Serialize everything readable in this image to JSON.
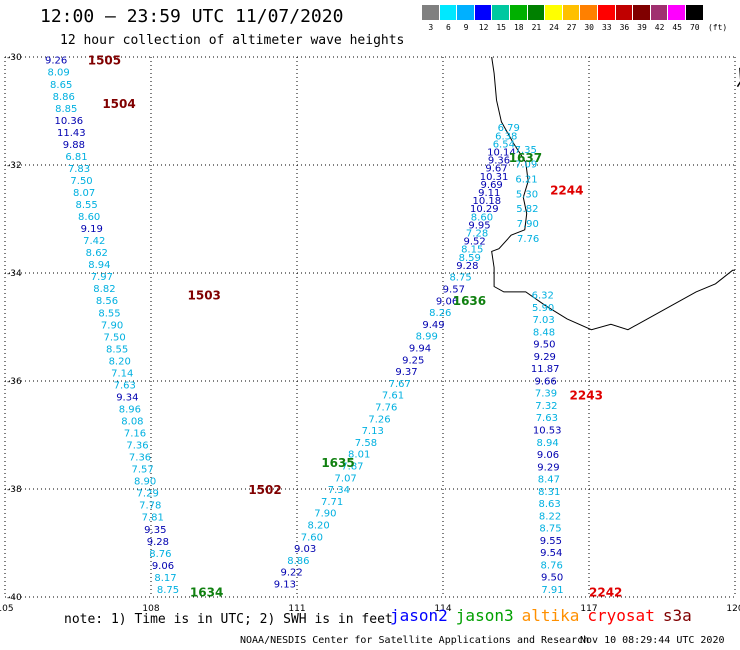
{
  "header": {
    "title": "12:00 — 23:59 UTC 11/07/2020",
    "subtitle": "12 hour collection of altimeter wave heights"
  },
  "legend": {
    "unit": "(ft)",
    "items": [
      {
        "label": "3",
        "color": "#808080"
      },
      {
        "label": "6",
        "color": "#00e8ff"
      },
      {
        "label": "9",
        "color": "#00b0ff"
      },
      {
        "label": "12",
        "color": "#0000ff"
      },
      {
        "label": "15",
        "color": "#00c8a0"
      },
      {
        "label": "18",
        "color": "#00b000"
      },
      {
        "label": "21",
        "color": "#008000"
      },
      {
        "label": "24",
        "color": "#ffff00"
      },
      {
        "label": "27",
        "color": "#ffc000"
      },
      {
        "label": "30",
        "color": "#ff8000"
      },
      {
        "label": "33",
        "color": "#ff0000"
      },
      {
        "label": "36",
        "color": "#c00000"
      },
      {
        "label": "39",
        "color": "#800000"
      },
      {
        "label": "42",
        "color": "#a03070"
      },
      {
        "label": "45",
        "color": "#ff00ff"
      },
      {
        "label": "70",
        "color": "#000000"
      }
    ]
  },
  "axes": {
    "lon_ticks": [
      "105",
      "108",
      "111",
      "114",
      "117",
      "120"
    ],
    "lat_ticks": [
      "-30",
      "-32",
      "-34",
      "-36",
      "-38",
      "-40"
    ],
    "lon_range": [
      105,
      120
    ],
    "lat_range": [
      -30,
      -40
    ]
  },
  "colors": {
    "light": "#00b0e0",
    "dark": "#0000b0",
    "pass_maroon": "#800000",
    "pass_green": "#108010",
    "pass_red": "#e00000",
    "coast": "#000000",
    "grid": "#000000"
  },
  "tracks": [
    {
      "name": "1505-1503-1634",
      "lon_start": 106.05,
      "lat_start": -30.05,
      "lon_end": 108.35,
      "lat_end": -39.85,
      "values": [
        "9.26",
        "8.09",
        "8.65",
        "8.86",
        "8.85",
        "10.36",
        "11.43",
        "9.88",
        "6.81",
        "7.83",
        "7.50",
        "8.07",
        "8.55",
        "8.60",
        "9.19",
        "7.42",
        "8.62",
        "8.94",
        "7.97",
        "8.82",
        "8.56",
        "8.55",
        "7.90",
        "7.50",
        "8.55",
        "8.20",
        "7.14",
        "7.63",
        "9.34",
        "8.96",
        "8.08",
        "7.16",
        "7.36",
        "7.36",
        "7.57",
        "8.90",
        "7.29",
        "7.78",
        "7.81",
        "9.35",
        "9.28",
        "8.76",
        "9.06",
        "8.17",
        "8.75"
      ]
    },
    {
      "name": "1636-1635-1502",
      "lon_start": 114.5,
      "lat_start": -33.85,
      "lon_end": 110.75,
      "lat_end": -39.75,
      "values": [
        "9.28",
        "8.75",
        "9.57",
        "9.06",
        "8.26",
        "9.49",
        "8.99",
        "9.94",
        "9.25",
        "9.37",
        "7.67",
        "7.61",
        "7.76",
        "7.26",
        "7.13",
        "7.58",
        "8.01",
        "7.87",
        "7.07",
        "7.34",
        "7.71",
        "7.90",
        "8.20",
        "7.60",
        "9.03",
        "8.86",
        "9.22",
        "9.13"
      ]
    },
    {
      "name": "1637-2244",
      "lon_start": 115.35,
      "lat_start": -31.3,
      "lon_end": 114.55,
      "lat_end": -33.7,
      "values": [
        "6.79",
        "6.38",
        "6.54",
        "10.14",
        "9.36",
        "9.67",
        "10.31",
        "9.69",
        "9.11",
        "10.18",
        "10.29",
        "8.60",
        "9.95",
        "7.28",
        "9.52",
        "8.15",
        "8.59"
      ]
    },
    {
      "name": "2244-inner",
      "lon_start": 115.7,
      "lat_start": -31.7,
      "lon_end": 115.75,
      "lat_end": -33.35,
      "values": [
        "7.35",
        "7.09",
        "6.21",
        "5.30",
        "5.82",
        "7.90",
        "7.76"
      ]
    },
    {
      "name": "2243-2242",
      "lon_start": 116.05,
      "lat_start": -34.4,
      "lon_end": 116.25,
      "lat_end": -39.85,
      "values": [
        "6.32",
        "5.90",
        "7.03",
        "8.48",
        "9.50",
        "9.29",
        "11.87",
        "9.66",
        "7.39",
        "7.32",
        "7.63",
        "10.53",
        "8.94",
        "9.06",
        "9.29",
        "8.47",
        "8.31",
        "8.63",
        "8.22",
        "8.75",
        "9.55",
        "9.54",
        "8.76",
        "9.50",
        "7.91"
      ]
    }
  ],
  "passes": [
    {
      "label": "1505",
      "lon": 106.7,
      "lat": -30.05,
      "color": "maroon"
    },
    {
      "label": "1504",
      "lon": 107.0,
      "lat": -30.85,
      "color": "maroon"
    },
    {
      "label": "1503",
      "lon": 108.75,
      "lat": -34.4,
      "color": "maroon"
    },
    {
      "label": "1502",
      "lon": 110.0,
      "lat": -38.0,
      "color": "maroon"
    },
    {
      "label": "1637",
      "lon": 115.35,
      "lat": -31.85,
      "color": "green"
    },
    {
      "label": "1636",
      "lon": 114.2,
      "lat": -34.5,
      "color": "green"
    },
    {
      "label": "1635",
      "lon": 111.5,
      "lat": -37.5,
      "color": "green"
    },
    {
      "label": "1634",
      "lon": 108.8,
      "lat": -39.9,
      "color": "green"
    },
    {
      "label": "2244",
      "lon": 116.2,
      "lat": -32.45,
      "color": "red"
    },
    {
      "label": "2243",
      "lon": 116.6,
      "lat": -36.25,
      "color": "red"
    },
    {
      "label": "2242",
      "lon": 117.0,
      "lat": -39.9,
      "color": "red"
    }
  ],
  "note": "note: 1) Time is in UTC; 2) SWH is in feet",
  "satellites": [
    {
      "name": "jason2",
      "color": "#0000ff"
    },
    {
      "name": "jason3",
      "color": "#00a000"
    },
    {
      "name": "altika",
      "color": "#ff9000"
    },
    {
      "name": "cryosat",
      "color": "#ff0000"
    },
    {
      "name": "s3a",
      "color": "#800000"
    }
  ],
  "footer": {
    "agency": "NOAA/NESDIS Center for Satellite Applications and Research",
    "timestamp": "Nov 10 08:29:44 UTC 2020"
  }
}
